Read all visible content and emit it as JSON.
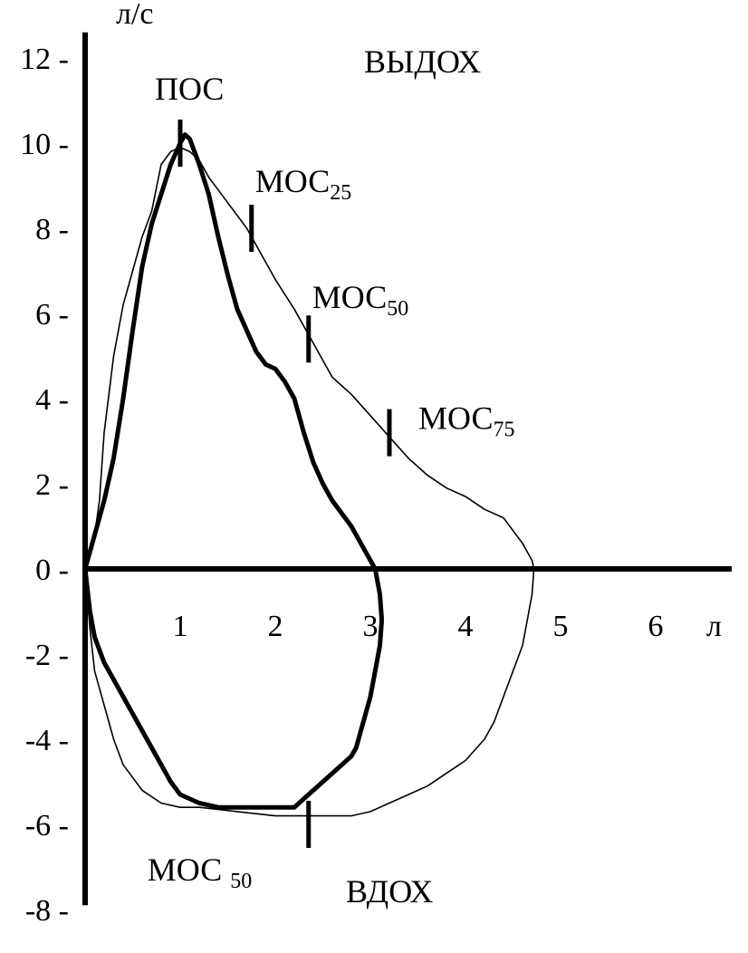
{
  "chart_data": {
    "type": "line",
    "title": "",
    "xlabel": "л",
    "ylabel": "л/с",
    "xlim": [
      0,
      7
    ],
    "ylim": [
      -8,
      12.6
    ],
    "x_ticks": [
      1,
      2,
      3,
      4,
      5,
      6
    ],
    "y_ticks": [
      12,
      10,
      8,
      6,
      4,
      2,
      0,
      -2,
      -4,
      -6,
      -8
    ],
    "y_tick_labels": [
      "12 -",
      "10 -",
      "8 -",
      "6 -",
      "4 -",
      "2 -",
      "0 -",
      "-2 -",
      "-4 -",
      "-6 -",
      "-8 -"
    ],
    "grid": false,
    "region_labels": {
      "expiration": "ВЫДОХ",
      "inspiration": "ВДОХ"
    },
    "series": [
      {
        "style": "thick",
        "x": [
          0,
          0.1,
          0.2,
          0.3,
          0.4,
          0.5,
          0.6,
          0.7,
          0.8,
          0.9,
          1.0,
          1.05,
          1.1,
          1.2,
          1.3,
          1.4,
          1.5,
          1.6,
          1.7,
          1.8,
          1.9,
          2.0,
          2.1,
          2.2,
          2.3,
          2.4,
          2.5,
          2.6,
          2.7,
          2.8,
          2.9,
          3.0,
          3.05,
          3.1,
          3.12,
          3.1,
          3.05,
          3.0,
          2.95,
          2.9,
          2.85,
          2.8,
          2.7,
          2.6,
          2.5,
          2.4,
          2.3,
          2.2,
          2.1,
          2.0,
          1.9,
          1.8,
          1.6,
          1.4,
          1.2,
          1.0,
          0.9,
          0.8,
          0.7,
          0.6,
          0.5,
          0.4,
          0.3,
          0.2,
          0.1,
          0.05,
          0
        ],
        "y": [
          0,
          0.8,
          1.6,
          2.6,
          4.0,
          5.6,
          7.1,
          8.1,
          8.8,
          9.5,
          10.0,
          10.2,
          10.1,
          9.5,
          8.8,
          7.8,
          6.9,
          6.1,
          5.6,
          5.1,
          4.8,
          4.7,
          4.4,
          4.0,
          3.2,
          2.5,
          2.0,
          1.6,
          1.3,
          1.0,
          0.6,
          0.2,
          0,
          -0.6,
          -1.2,
          -1.8,
          -2.4,
          -3.0,
          -3.4,
          -3.8,
          -4.2,
          -4.4,
          -4.6,
          -4.8,
          -5.0,
          -5.2,
          -5.4,
          -5.6,
          -5.6,
          -5.6,
          -5.6,
          -5.6,
          -5.6,
          -5.6,
          -5.5,
          -5.3,
          -5.0,
          -4.6,
          -4.2,
          -3.8,
          -3.4,
          -3.0,
          -2.6,
          -2.2,
          -1.6,
          -1.0,
          0
        ]
      },
      {
        "style": "thin",
        "x": [
          0,
          0.1,
          0.15,
          0.2,
          0.3,
          0.4,
          0.5,
          0.6,
          0.7,
          0.8,
          0.9,
          1.0,
          1.1,
          1.2,
          1.3,
          1.4,
          1.5,
          1.6,
          1.7,
          1.8,
          1.9,
          2.0,
          2.2,
          2.4,
          2.6,
          2.8,
          3.0,
          3.2,
          3.4,
          3.6,
          3.8,
          4.0,
          4.2,
          4.4,
          4.5,
          4.6,
          4.7,
          4.72,
          4.7,
          4.65,
          4.6,
          4.5,
          4.4,
          4.3,
          4.2,
          4.0,
          3.8,
          3.6,
          3.4,
          3.2,
          3.0,
          2.8,
          2.6,
          2.4,
          2.2,
          2.0,
          1.6,
          1.2,
          1.0,
          0.8,
          0.6,
          0.4,
          0.3,
          0.2,
          0.1,
          0.05,
          0
        ],
        "y": [
          0,
          0.8,
          1.6,
          3.2,
          5.0,
          6.2,
          7.0,
          7.8,
          8.4,
          9.5,
          9.8,
          9.9,
          9.8,
          9.6,
          9.2,
          8.9,
          8.6,
          8.3,
          8.0,
          7.6,
          7.2,
          6.8,
          6.1,
          5.3,
          4.5,
          4.1,
          3.6,
          3.1,
          2.6,
          2.2,
          1.9,
          1.7,
          1.4,
          1.2,
          0.9,
          0.6,
          0.2,
          0,
          -0.6,
          -1.2,
          -1.8,
          -2.4,
          -3.0,
          -3.6,
          -4.0,
          -4.5,
          -4.8,
          -5.1,
          -5.3,
          -5.5,
          -5.7,
          -5.8,
          -5.8,
          -5.8,
          -5.8,
          -5.8,
          -5.7,
          -5.6,
          -5.6,
          -5.5,
          -5.2,
          -4.6,
          -4.0,
          -3.2,
          -2.4,
          -1.4,
          0
        ]
      }
    ],
    "annotations": [
      {
        "label": "ПОС",
        "sub": "",
        "x": 1.0,
        "y": 10.0
      },
      {
        "label": "МОС",
        "sub": "25",
        "x": 1.75,
        "y": 8.0
      },
      {
        "label": "МОС",
        "sub": "50",
        "x": 2.35,
        "y": 5.4
      },
      {
        "label": "МОС",
        "sub": "75",
        "x": 3.2,
        "y": 3.2
      },
      {
        "label": "МОС ",
        "sub": "50",
        "x": 2.35,
        "y": -6.0
      }
    ]
  }
}
